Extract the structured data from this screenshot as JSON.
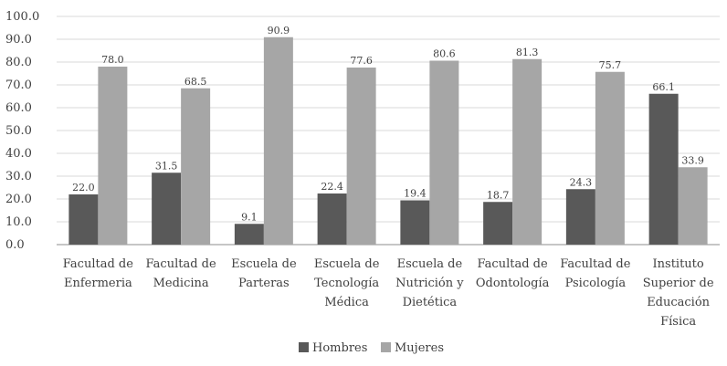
{
  "chart_data": {
    "type": "bar",
    "title": "",
    "xlabel": "",
    "ylabel": "",
    "ylim": [
      0,
      100
    ],
    "ytick_step": 10,
    "grid": true,
    "legend_position": "bottom",
    "categories": [
      [
        "Facultad de",
        "Enfermeria"
      ],
      [
        "Facultad de",
        "Medicina"
      ],
      [
        "Escuela de",
        "Parteras"
      ],
      [
        "Escuela de",
        "Tecnología",
        "Médica"
      ],
      [
        "Escuela de",
        "Nutrición y",
        "Dietética"
      ],
      [
        "Facultad de",
        "Odontología"
      ],
      [
        "Facultad de",
        "Psicología"
      ],
      [
        "Instituto",
        "Superior de",
        "Educación",
        "Física"
      ]
    ],
    "series": [
      {
        "name": "Hombres",
        "color": "#595959",
        "values": [
          22.0,
          31.5,
          9.1,
          22.4,
          19.4,
          18.7,
          24.3,
          66.1
        ]
      },
      {
        "name": "Mujeres",
        "color": "#a6a6a6",
        "values": [
          78.0,
          68.5,
          90.9,
          77.6,
          80.6,
          81.3,
          75.7,
          33.9
        ]
      }
    ]
  }
}
